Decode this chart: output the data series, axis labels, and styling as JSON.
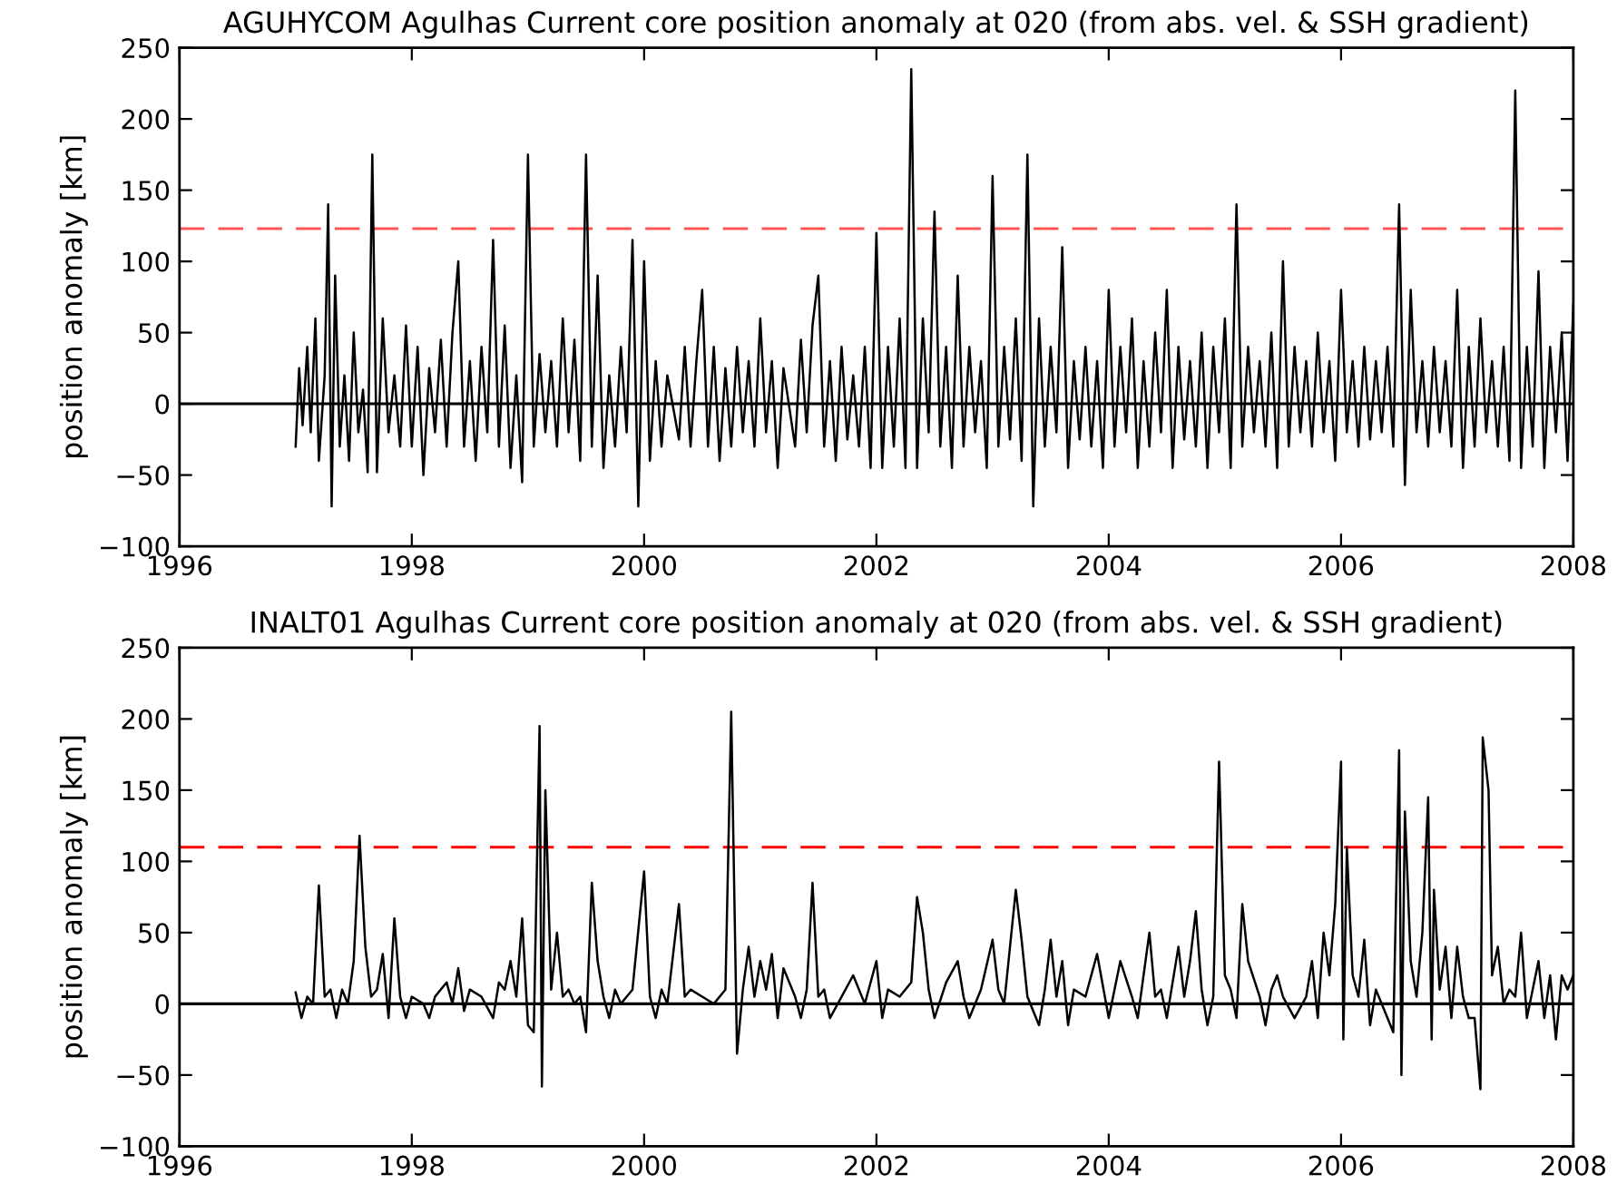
{
  "chart_data": [
    {
      "type": "line",
      "title": "AGUHYCOM Agulhas Current core position anomaly at 020 (from abs. vel. & SSH gradient)",
      "ylabel": "position anomaly [km]",
      "xlim": [
        1996,
        2008
      ],
      "ylim": [
        -100,
        250
      ],
      "xticks": [
        1996,
        1998,
        2000,
        2002,
        2004,
        2006,
        2008
      ],
      "yticks": [
        -100,
        -50,
        0,
        50,
        100,
        150,
        200,
        250
      ],
      "grid": false,
      "marker": "none",
      "line_style": "solid",
      "ref_lines": [
        {
          "axis": "y",
          "value": 0,
          "color": "#000000",
          "line_style": "solid"
        },
        {
          "axis": "y",
          "value": 123,
          "color": "#ff5555",
          "line_style": "dashed"
        }
      ],
      "series": [
        {
          "color": "#000000",
          "x": [
            1997.0,
            1997.03,
            1997.06,
            1997.1,
            1997.13,
            1997.17,
            1997.2,
            1997.25,
            1997.28,
            1997.31,
            1997.34,
            1997.38,
            1997.42,
            1997.46,
            1997.5,
            1997.54,
            1997.58,
            1997.62,
            1997.66,
            1997.7,
            1997.75,
            1997.8,
            1997.85,
            1997.9,
            1997.95,
            1998.0,
            1998.05,
            1998.1,
            1998.15,
            1998.2,
            1998.25,
            1998.3,
            1998.35,
            1998.4,
            1998.45,
            1998.5,
            1998.55,
            1998.6,
            1998.65,
            1998.7,
            1998.75,
            1998.8,
            1998.85,
            1998.9,
            1998.95,
            1999.0,
            1999.05,
            1999.1,
            1999.15,
            1999.2,
            1999.25,
            1999.3,
            1999.35,
            1999.4,
            1999.45,
            1999.5,
            1999.55,
            1999.6,
            1999.65,
            1999.7,
            1999.75,
            1999.8,
            1999.85,
            1999.9,
            1999.95,
            2000.0,
            2000.05,
            2000.1,
            2000.15,
            2000.2,
            2000.3,
            2000.35,
            2000.4,
            2000.45,
            2000.5,
            2000.55,
            2000.6,
            2000.65,
            2000.7,
            2000.75,
            2000.8,
            2000.85,
            2000.9,
            2000.95,
            2001.0,
            2001.05,
            2001.1,
            2001.15,
            2001.2,
            2001.3,
            2001.35,
            2001.4,
            2001.45,
            2001.5,
            2001.55,
            2001.6,
            2001.65,
            2001.7,
            2001.75,
            2001.8,
            2001.85,
            2001.9,
            2001.95,
            2002.0,
            2002.05,
            2002.1,
            2002.15,
            2002.2,
            2002.25,
            2002.3,
            2002.35,
            2002.4,
            2002.45,
            2002.5,
            2002.55,
            2002.6,
            2002.65,
            2002.7,
            2002.75,
            2002.8,
            2002.85,
            2002.9,
            2002.95,
            2003.0,
            2003.05,
            2003.1,
            2003.15,
            2003.2,
            2003.25,
            2003.3,
            2003.35,
            2003.4,
            2003.45,
            2003.5,
            2003.55,
            2003.6,
            2003.65,
            2003.7,
            2003.75,
            2003.8,
            2003.85,
            2003.9,
            2003.95,
            2004.0,
            2004.05,
            2004.1,
            2004.15,
            2004.2,
            2004.25,
            2004.3,
            2004.35,
            2004.4,
            2004.45,
            2004.5,
            2004.55,
            2004.6,
            2004.65,
            2004.7,
            2004.75,
            2004.8,
            2004.85,
            2004.9,
            2004.95,
            2005.0,
            2005.05,
            2005.1,
            2005.15,
            2005.2,
            2005.25,
            2005.3,
            2005.35,
            2005.4,
            2005.45,
            2005.5,
            2005.55,
            2005.6,
            2005.65,
            2005.7,
            2005.75,
            2005.8,
            2005.85,
            2005.9,
            2005.95,
            2006.0,
            2006.05,
            2006.1,
            2006.15,
            2006.2,
            2006.25,
            2006.3,
            2006.35,
            2006.4,
            2006.45,
            2006.5,
            2006.55,
            2006.6,
            2006.65,
            2006.7,
            2006.75,
            2006.8,
            2006.85,
            2006.9,
            2006.95,
            2007.0,
            2007.05,
            2007.1,
            2007.15,
            2007.2,
            2007.25,
            2007.3,
            2007.35,
            2007.4,
            2007.45,
            2007.5,
            2007.55,
            2007.6,
            2007.65,
            2007.7,
            2007.75,
            2007.8,
            2007.85,
            2007.9,
            2007.95,
            2008.0
          ],
          "values": [
            -30,
            25,
            -15,
            40,
            -20,
            60,
            -40,
            20,
            140,
            -72,
            90,
            -30,
            20,
            -40,
            50,
            -20,
            10,
            -48,
            175,
            -48,
            60,
            -20,
            20,
            -30,
            55,
            -30,
            40,
            -50,
            25,
            -20,
            45,
            -30,
            50,
            100,
            -30,
            30,
            -40,
            40,
            -20,
            115,
            -30,
            55,
            -45,
            20,
            -55,
            175,
            -30,
            35,
            -20,
            30,
            -30,
            60,
            -20,
            45,
            -40,
            175,
            -30,
            90,
            -45,
            20,
            -30,
            40,
            -20,
            115,
            -72,
            100,
            -40,
            30,
            -30,
            20,
            -25,
            40,
            -30,
            30,
            80,
            -30,
            40,
            -40,
            25,
            -30,
            40,
            -20,
            30,
            -30,
            60,
            -20,
            30,
            -45,
            25,
            -30,
            45,
            -20,
            55,
            90,
            -30,
            30,
            -40,
            40,
            -25,
            20,
            -30,
            40,
            -45,
            120,
            -45,
            40,
            -30,
            60,
            -45,
            235,
            -45,
            60,
            -20,
            135,
            -30,
            40,
            -45,
            90,
            -30,
            40,
            -20,
            30,
            -45,
            160,
            -30,
            40,
            -25,
            60,
            -40,
            175,
            -72,
            60,
            -30,
            40,
            -20,
            110,
            -45,
            30,
            -25,
            40,
            -30,
            30,
            -45,
            80,
            -30,
            40,
            -20,
            60,
            -45,
            30,
            -30,
            50,
            -20,
            80,
            -45,
            40,
            -25,
            30,
            -30,
            50,
            -45,
            40,
            -20,
            60,
            -45,
            140,
            -30,
            40,
            -20,
            30,
            -30,
            50,
            -45,
            100,
            -30,
            40,
            -20,
            30,
            -30,
            50,
            -20,
            30,
            -40,
            80,
            -20,
            30,
            -30,
            40,
            -25,
            30,
            -20,
            40,
            -30,
            140,
            -57,
            80,
            -20,
            30,
            -30,
            40,
            -20,
            30,
            -30,
            80,
            -45,
            40,
            -30,
            60,
            -20,
            30,
            -30,
            40,
            -40,
            220,
            -45,
            40,
            -30,
            93,
            -45,
            40,
            -20,
            50,
            -40,
            70
          ]
        }
      ]
    },
    {
      "type": "line",
      "title": "INALT01 Agulhas Current core position anomaly at 020 (from abs. vel. & SSH gradient)",
      "ylabel": "position anomaly [km]",
      "xlim": [
        1996,
        2008
      ],
      "ylim": [
        -100,
        250
      ],
      "xticks": [
        1996,
        1998,
        2000,
        2002,
        2004,
        2006,
        2008
      ],
      "yticks": [
        -100,
        -50,
        0,
        50,
        100,
        150,
        200,
        250
      ],
      "grid": false,
      "marker": "none",
      "line_style": "solid",
      "ref_lines": [
        {
          "axis": "y",
          "value": 0,
          "color": "#000000",
          "line_style": "solid"
        },
        {
          "axis": "y",
          "value": 110,
          "color": "#ff0000",
          "line_style": "dashed"
        }
      ],
      "series": [
        {
          "color": "#000000",
          "x": [
            1997.0,
            1997.05,
            1997.1,
            1997.15,
            1997.2,
            1997.25,
            1997.3,
            1997.35,
            1997.4,
            1997.45,
            1997.5,
            1997.55,
            1997.6,
            1997.65,
            1997.7,
            1997.75,
            1997.8,
            1997.85,
            1997.9,
            1997.95,
            1998.0,
            1998.1,
            1998.15,
            1998.2,
            1998.3,
            1998.35,
            1998.4,
            1998.45,
            1998.5,
            1998.6,
            1998.7,
            1998.75,
            1998.8,
            1998.85,
            1998.9,
            1998.95,
            1999.0,
            1999.05,
            1999.1,
            1999.12,
            1999.15,
            1999.2,
            1999.25,
            1999.3,
            1999.35,
            1999.4,
            1999.45,
            1999.5,
            1999.55,
            1999.6,
            1999.65,
            1999.7,
            1999.75,
            1999.8,
            1999.85,
            1999.9,
            2000.0,
            2000.05,
            2000.1,
            2000.15,
            2000.2,
            2000.3,
            2000.35,
            2000.4,
            2000.5,
            2000.6,
            2000.7,
            2000.75,
            2000.8,
            2000.85,
            2000.9,
            2000.95,
            2001.0,
            2001.05,
            2001.1,
            2001.15,
            2001.2,
            2001.3,
            2001.35,
            2001.4,
            2001.45,
            2001.5,
            2001.55,
            2001.6,
            2001.7,
            2001.8,
            2001.9,
            2002.0,
            2002.05,
            2002.1,
            2002.2,
            2002.3,
            2002.35,
            2002.4,
            2002.45,
            2002.5,
            2002.6,
            2002.7,
            2002.75,
            2002.8,
            2002.9,
            2003.0,
            2003.05,
            2003.1,
            2003.2,
            2003.25,
            2003.3,
            2003.4,
            2003.45,
            2003.5,
            2003.55,
            2003.6,
            2003.65,
            2003.7,
            2003.8,
            2003.9,
            2004.0,
            2004.05,
            2004.1,
            2004.2,
            2004.25,
            2004.3,
            2004.35,
            2004.4,
            2004.45,
            2004.5,
            2004.6,
            2004.65,
            2004.7,
            2004.75,
            2004.8,
            2004.85,
            2004.9,
            2004.95,
            2005.0,
            2005.05,
            2005.1,
            2005.15,
            2005.2,
            2005.3,
            2005.35,
            2005.4,
            2005.45,
            2005.5,
            2005.6,
            2005.7,
            2005.75,
            2005.8,
            2005.85,
            2005.9,
            2005.95,
            2006.0,
            2006.02,
            2006.05,
            2006.1,
            2006.15,
            2006.2,
            2006.25,
            2006.3,
            2006.4,
            2006.45,
            2006.5,
            2006.52,
            2006.55,
            2006.6,
            2006.65,
            2006.7,
            2006.75,
            2006.78,
            2006.8,
            2006.85,
            2006.9,
            2006.95,
            2007.0,
            2007.05,
            2007.1,
            2007.15,
            2007.2,
            2007.22,
            2007.27,
            2007.3,
            2007.35,
            2007.4,
            2007.45,
            2007.5,
            2007.55,
            2007.6,
            2007.65,
            2007.7,
            2007.75,
            2007.8,
            2007.85,
            2007.9,
            2007.95,
            2008.0
          ],
          "values": [
            8,
            -10,
            5,
            0,
            83,
            5,
            10,
            -10,
            10,
            0,
            30,
            118,
            40,
            5,
            10,
            35,
            -10,
            60,
            5,
            -10,
            5,
            0,
            -10,
            5,
            15,
            0,
            25,
            -5,
            10,
            5,
            -10,
            15,
            10,
            30,
            5,
            60,
            -15,
            -20,
            195,
            -58,
            150,
            10,
            50,
            5,
            10,
            0,
            5,
            -20,
            85,
            30,
            5,
            -10,
            10,
            0,
            5,
            10,
            93,
            5,
            -10,
            10,
            0,
            70,
            5,
            10,
            5,
            0,
            10,
            205,
            -35,
            10,
            40,
            5,
            30,
            10,
            35,
            -10,
            25,
            5,
            -10,
            10,
            85,
            5,
            10,
            -10,
            5,
            20,
            0,
            30,
            -10,
            10,
            5,
            15,
            75,
            50,
            10,
            -10,
            15,
            30,
            5,
            -10,
            10,
            45,
            10,
            0,
            80,
            45,
            5,
            -15,
            10,
            45,
            5,
            30,
            -15,
            10,
            5,
            35,
            -10,
            10,
            30,
            5,
            -10,
            20,
            50,
            5,
            10,
            -10,
            40,
            5,
            30,
            65,
            10,
            -15,
            5,
            170,
            20,
            10,
            -10,
            70,
            30,
            5,
            -15,
            10,
            20,
            5,
            -10,
            5,
            30,
            -10,
            50,
            20,
            70,
            170,
            -25,
            110,
            20,
            5,
            45,
            -15,
            10,
            -10,
            -20,
            178,
            -50,
            135,
            30,
            5,
            50,
            145,
            -25,
            80,
            10,
            40,
            -10,
            40,
            5,
            -10,
            -10,
            -60,
            187,
            150,
            20,
            40,
            0,
            10,
            5,
            50,
            -10,
            10,
            30,
            -10,
            20,
            -25,
            20,
            10,
            20
          ]
        }
      ]
    }
  ]
}
